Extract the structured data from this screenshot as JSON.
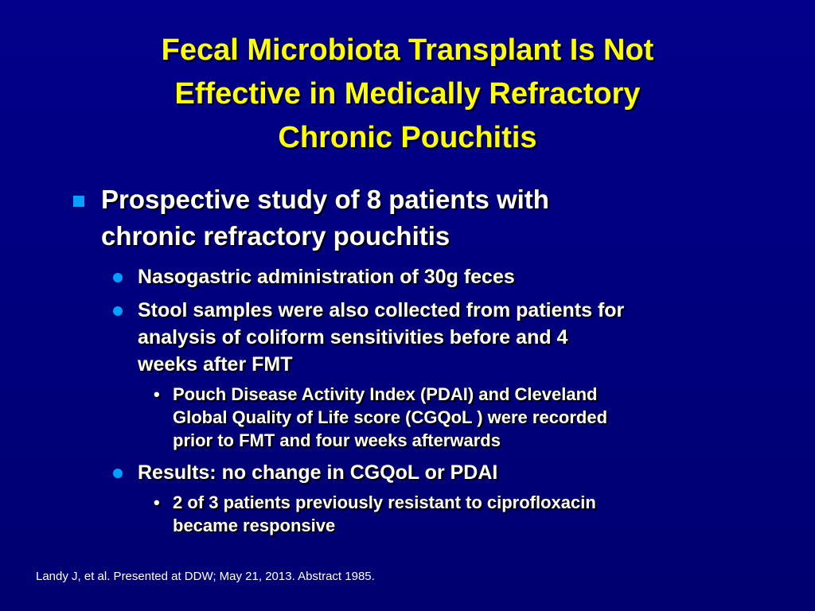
{
  "slide": {
    "title": [
      "Fecal Microbiota Transplant Is Not",
      "Effective in Medically Refractory",
      "Chronic Pouchitis"
    ],
    "bullet": [
      "Prospective study of 8 patients with",
      "chronic refractory pouchitis"
    ],
    "sub1": "Nasogastric administration of 30g feces",
    "sub2": [
      "Stool samples were also collected from patients for",
      "analysis of coliform sensitivities before and 4",
      "weeks after FMT"
    ],
    "sub2a": [
      "Pouch Disease Activity Index (PDAI) and Cleveland",
      "Global Quality of Life score (CGQoL ) were recorded",
      "prior to FMT and four weeks afterwards"
    ],
    "sub3": "Results: no change in CGQoL or PDAI",
    "sub3a": [
      "2 of 3 patients previously resistant to ciprofloxacin",
      "became responsive"
    ],
    "footnote": "Landy J, et al. Presented at DDW; May 21, 2013. Abstract 1985."
  }
}
